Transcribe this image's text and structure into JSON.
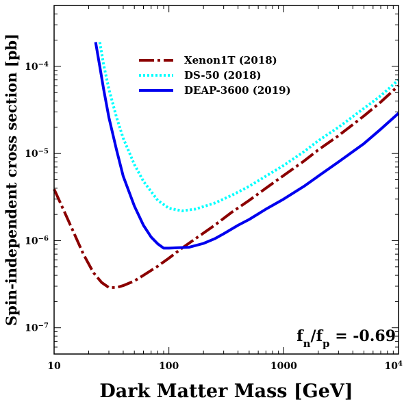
{
  "chart_data": {
    "type": "line",
    "xlabel": "Dark Matter Mass [GeV]",
    "ylabel": "Spin-independent cross section [pb]",
    "x_scale": "log",
    "y_scale": "log",
    "xlim": [
      10,
      10000
    ],
    "ylim": [
      5e-08,
      0.0005
    ],
    "x_ticks": [
      {
        "value": 10,
        "label": "10"
      },
      {
        "value": 100,
        "label": "100"
      },
      {
        "value": 1000,
        "label": "1000"
      },
      {
        "value": 10000,
        "label": "10",
        "sup": "4"
      }
    ],
    "y_ticks": [
      {
        "value": 1e-07,
        "label": "10",
        "sup": "−7"
      },
      {
        "value": 1e-06,
        "label": "10",
        "sup": "−6"
      },
      {
        "value": 1e-05,
        "label": "10",
        "sup": "−5"
      },
      {
        "value": 0.0001,
        "label": "10",
        "sup": "−4"
      }
    ],
    "grid": false,
    "legend_position": "top-center",
    "annotation": {
      "base": "f",
      "sub1": "n",
      "mid": "/f",
      "sub2": "p",
      "rest": " = -0.69"
    },
    "series": [
      {
        "name": "Xenon1T (2018)",
        "color": "#8B0000",
        "style": "dashdot",
        "x": [
          10,
          12,
          15,
          18,
          22,
          26,
          30,
          35,
          40,
          50,
          60,
          80,
          100,
          130,
          170,
          250,
          350,
          500,
          700,
          1000,
          1500,
          2000,
          3000,
          5000,
          7000,
          10000
        ],
        "y": [
          3.9e-06,
          2.3e-06,
          1.2e-06,
          7e-07,
          4.3e-07,
          3.3e-07,
          2.9e-07,
          2.9e-07,
          3.05e-07,
          3.45e-07,
          4e-07,
          5.1e-07,
          6.3e-07,
          8.2e-07,
          1.05e-06,
          1.5e-06,
          2.1e-06,
          2.9e-06,
          4e-06,
          5.6e-06,
          8.2e-06,
          1.1e-05,
          1.6e-05,
          2.7e-05,
          3.9e-05,
          6e-05
        ]
      },
      {
        "name": "DS-50 (2018)",
        "color": "#00FFFF",
        "style": "dotted",
        "x": [
          25,
          27,
          30,
          35,
          40,
          50,
          60,
          80,
          100,
          130,
          170,
          250,
          350,
          500,
          700,
          1000,
          1500,
          2000,
          3000,
          5000,
          7000,
          10000
        ],
        "y": [
          0.00019,
          0.000105,
          5.5e-05,
          2.6e-05,
          1.5e-05,
          7.5e-06,
          4.8e-06,
          2.9e-06,
          2.35e-06,
          2.2e-06,
          2.3e-06,
          2.7e-06,
          3.3e-06,
          4.2e-06,
          5.5e-06,
          7.3e-06,
          1.05e-05,
          1.4e-05,
          2e-05,
          3.3e-05,
          4.6e-05,
          7e-05
        ]
      },
      {
        "name": "DEAP-3600 (2019)",
        "color": "#0000EE",
        "style": "solid",
        "x": [
          23,
          25,
          27,
          30,
          35,
          40,
          50,
          60,
          70,
          80,
          90,
          100,
          120,
          150,
          200,
          250,
          300,
          400,
          500,
          700,
          1000,
          1500,
          2000,
          3000,
          5000,
          7000,
          10000
        ],
        "y": [
          0.00019,
          0.0001,
          5.5e-05,
          2.6e-05,
          1.1e-05,
          5.5e-06,
          2.5e-06,
          1.5e-06,
          1.1e-06,
          9.2e-07,
          8.2e-07,
          8.2e-07,
          8.3e-07,
          8.4e-07,
          9.3e-07,
          1.05e-06,
          1.2e-06,
          1.5e-06,
          1.75e-06,
          2.3e-06,
          3e-06,
          4.2e-06,
          5.5e-06,
          8e-06,
          1.3e-05,
          1.9e-05,
          2.9e-05
        ]
      }
    ]
  }
}
